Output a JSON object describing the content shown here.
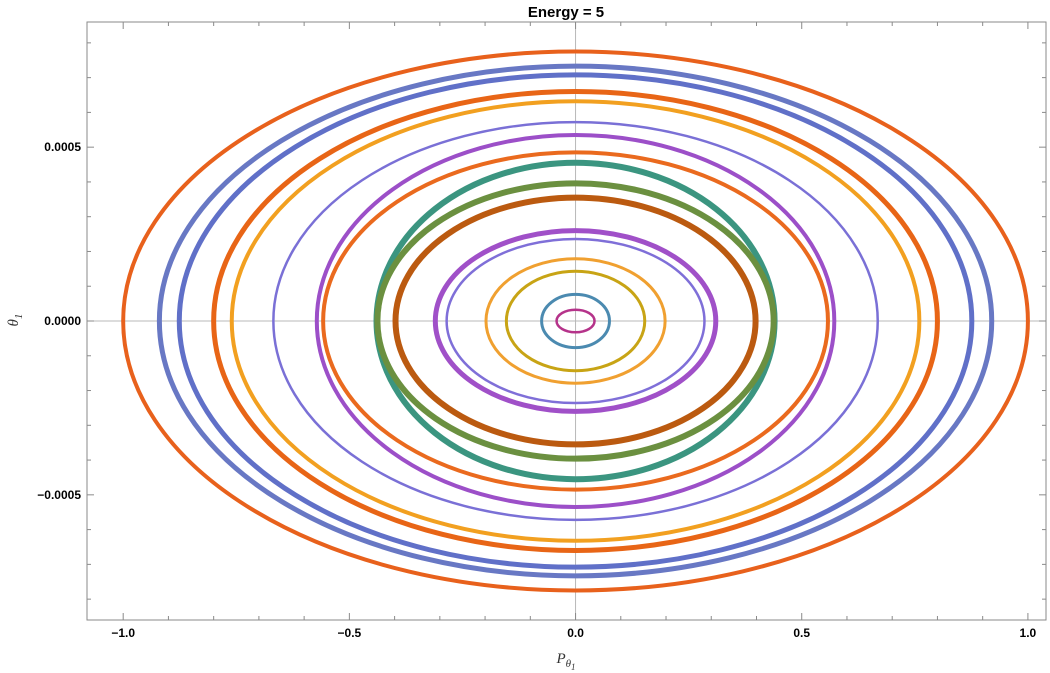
{
  "chart_data": {
    "type": "line",
    "title": "Energy = 5",
    "xlabel": {
      "base": "P",
      "sub": "θ",
      "subsub": "1"
    },
    "ylabel": {
      "base": "θ",
      "sub": "1"
    },
    "xlim": [
      -1.08,
      1.04
    ],
    "ylim": [
      -0.00086,
      0.00086
    ],
    "xticks": [
      {
        "value": -1.0,
        "label": "−1.0"
      },
      {
        "value": -0.5,
        "label": "−0.5"
      },
      {
        "value": 0.0,
        "label": "0.0"
      },
      {
        "value": 0.5,
        "label": "0.5"
      },
      {
        "value": 1.0,
        "label": "1.0"
      }
    ],
    "yticks": [
      {
        "value": 0.0005,
        "label": "0.0005"
      },
      {
        "value": 0.0,
        "label": "0.0000"
      },
      {
        "value": -0.0005,
        "label": "−0.0005"
      }
    ],
    "series": [
      {
        "a": 0.042,
        "b": 3.25e-05,
        "color": "#b5338a",
        "width": 2.5
      },
      {
        "a": 0.075,
        "b": 7.65e-05,
        "color": "#4b8ab0",
        "width": 3
      },
      {
        "a": 0.153,
        "b": 0.000143,
        "color": "#c8a415",
        "width": 3
      },
      {
        "a": 0.198,
        "b": 0.000179,
        "color": "#f0a030",
        "width": 3
      },
      {
        "a": 0.285,
        "b": 0.000236,
        "color": "#7f6fd8",
        "width": 2.5
      },
      {
        "a": 0.31,
        "b": 0.00026,
        "color": "#a050c8",
        "width": 5
      },
      {
        "a": 0.398,
        "b": 0.000355,
        "color": "#bb5a10",
        "width": 6
      },
      {
        "a": 0.438,
        "b": 0.000396,
        "color": "#6b9040",
        "width": 6
      },
      {
        "a": 0.44,
        "b": 0.000455,
        "color": "#3b9580",
        "width": 6
      },
      {
        "a": 0.558,
        "b": 0.000485,
        "color": "#ea6a1e",
        "width": 4
      },
      {
        "a": 0.572,
        "b": 0.000535,
        "color": "#9c4fc8",
        "width": 4
      },
      {
        "a": 0.668,
        "b": 0.000572,
        "color": "#7a70d6",
        "width": 2.5
      },
      {
        "a": 0.76,
        "b": 0.000632,
        "color": "#f2a020",
        "width": 4
      },
      {
        "a": 0.8,
        "b": 0.00066,
        "color": "#e86516",
        "width": 5
      },
      {
        "a": 0.876,
        "b": 0.000708,
        "color": "#6070c8",
        "width": 5
      },
      {
        "a": 0.92,
        "b": 0.000733,
        "color": "#6878c4",
        "width": 5
      },
      {
        "a": 1.0,
        "b": 0.000775,
        "color": "#e8611c",
        "width": 4
      }
    ],
    "grid": "axes-only"
  }
}
